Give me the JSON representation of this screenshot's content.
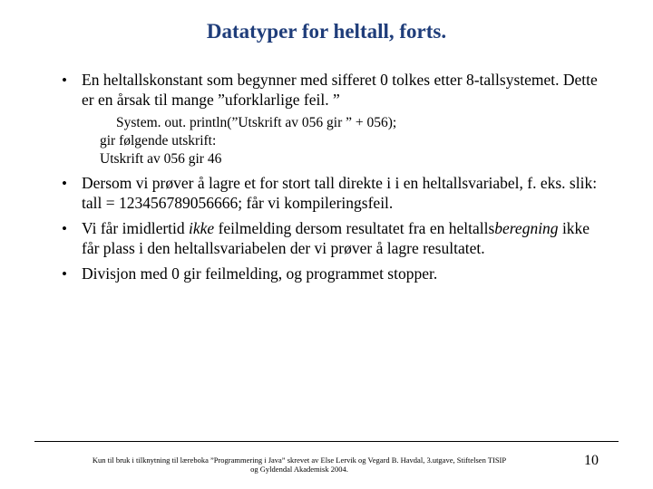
{
  "title": "Datatyper for heltall, forts.",
  "bullets": {
    "b1_pre": "En heltallskonstant som begynner med sifferet 0 tolkes etter 8-tallsystemet. Dette er en årsak til mange ",
    "b1_quote": "”uforklarlige feil. ”",
    "sub_code": "System. out. println(”Utskrift av 056 gir ” + 056);",
    "sub_l2": "gir følgende utskrift:",
    "sub_l3": "Utskrift av 056 gir 46",
    "b2": "Dersom vi prøver å lagre et for stort tall direkte i i en heltallsvariabel, f. eks. slik: tall = 123456789056666; får vi kompileringsfeil.",
    "b3_a": "Vi får imidlertid ",
    "b3_ikke": "ikke",
    "b3_b": " feilmelding dersom resultatet fra en heltalls",
    "b3_bereg": "beregning",
    "b3_c": " ikke får plass i den heltallsvariabelen der vi prøver å lagre resultatet.",
    "b4": "Divisjon med 0 gir feilmelding, og programmet stopper."
  },
  "footer": "Kun til bruk i tilknytning til læreboka ”Programmering i Java” skrevet av Else Lervik og Vegard B. Havdal, 3.utgave, Stiftelsen TISIP og Gyldendal Akademisk 2004.",
  "page_number": "10",
  "colors": {
    "title_color": "#1f3d7a",
    "text_color": "#000000",
    "background": "#ffffff",
    "rule_color": "#000000"
  }
}
